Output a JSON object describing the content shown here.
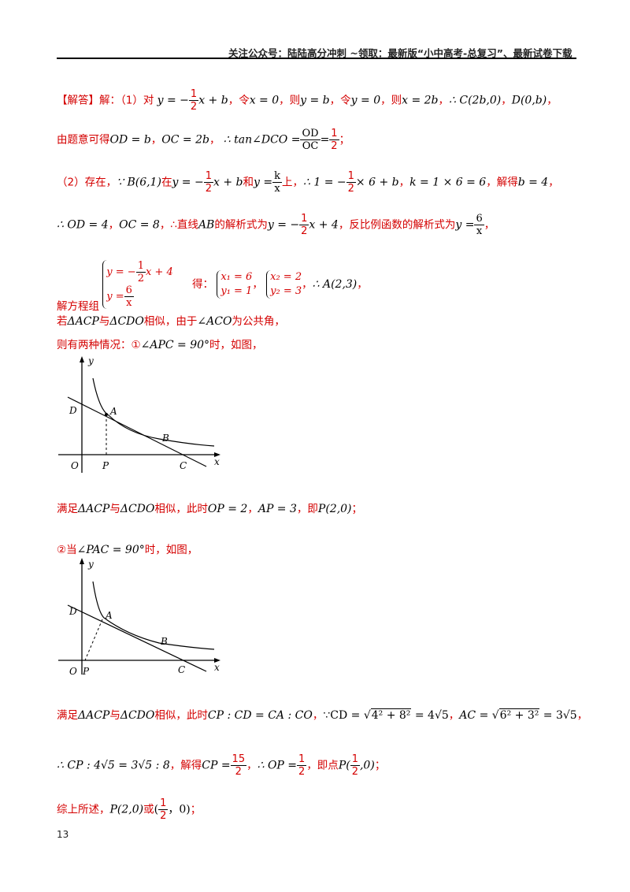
{
  "header": {
    "text": "关注公众号：陆陆高分冲刺 ~领取：最新版“小中高考-总复习”、最新试卷下载"
  },
  "page_number": "13",
  "l1": {
    "tag": "【解答】",
    "t1": "解：（1）对",
    "eq1": "y = −",
    "eq1n": "1",
    "eq1d": "2",
    "eq1r": "x + b",
    "t2": "，令",
    "e2": "x = 0",
    "t3": "，则",
    "e3": "y = b",
    "t4": "，令",
    "e4": "y = 0",
    "t5": "，则",
    "e5": "x = 2b",
    "t6": "，",
    "e6": "∴ C(2b,0)",
    "t7": "，",
    "e7": "D(0,b)",
    "t8": "，"
  },
  "l2": {
    "t1": "由题意可得",
    "e1": "OD = b",
    "t2": "，",
    "e2": "OC = 2b",
    "t3": "，",
    "e3": "∴ tan∠DCO =",
    "f1n": "OD",
    "f1d": "OC",
    "eq": "=",
    "f2n": "1",
    "f2d": "2",
    "t4": "；"
  },
  "l3": {
    "t1": "（2）存在，",
    "e1": "∵ B(6,1)",
    "t2": "在",
    "e2": "y = −",
    "e2n": "1",
    "e2d": "2",
    "e2r": "x + b",
    "t3": "和",
    "e3": "y =",
    "e3n": "k",
    "e3d": "x",
    "t4": "上，",
    "e4": "∴ 1 = −",
    "e4n": "1",
    "e4d": "2",
    "e4r": "× 6 + b",
    "t5": "，",
    "e5": "k = 1 × 6 = 6",
    "t6": "，解得",
    "e6": "b = 4",
    "t7": "，"
  },
  "l4": {
    "e1": "∴ OD = 4",
    "t1": "，",
    "e2": "OC = 8",
    "t2": "，∴直线",
    "e3": "AB",
    "t3": "的解析式为",
    "e4": "y = −",
    "e4n": "1",
    "e4d": "2",
    "e4r": "x + 4",
    "t4": "，反比例函数的解析式为",
    "e5": "y =",
    "e5n": "6",
    "e5d": "x",
    "t5": "，"
  },
  "l5": {
    "t1": "解方程组",
    "s1a": "y = −",
    "s1n": "1",
    "s1d": "2",
    "s1r": "x + 4",
    "s1b": "y =",
    "s1bn": "6",
    "s1bd": "x",
    "t2": "得：",
    "s2a": "x₁ = 6",
    "s2b": "y₁ = 1",
    "t3": "，",
    "s3a": "x₂ = 2",
    "s3b": "y₂ = 3",
    "t4": "，",
    "e1": "∴ A(2,3)",
    "t5": "，"
  },
  "l6": {
    "t1": "若",
    "e1": "ΔACP",
    "t2": "与",
    "e2": "ΔCDO",
    "t3": "相似，由于",
    "e3": "∠ACO",
    "t4": "为公共角，"
  },
  "l7": {
    "t1": "则有两种情况：①",
    "e1": "∠APC = 90°",
    "t2": "时，如图，"
  },
  "l8": {
    "t1": "满足",
    "e1": "ΔACP",
    "t2": "与",
    "e2": "ΔCDO",
    "t3": "相似，此时",
    "e3": "OP = 2",
    "t4": "，",
    "e4": "AP = 3",
    "t5": "，即",
    "e5": "P(2,0)",
    "t6": "；"
  },
  "l9": {
    "t1": "②当",
    "e1": "∠PAC = 90°",
    "t2": "时，如图，"
  },
  "l10": {
    "t1": "满足",
    "e1": "ΔACP",
    "t2": "与",
    "e2": "ΔCDO",
    "t3": "相似，此时",
    "e3": "CP : CD = CA : CO",
    "t4": "，",
    "e4": "∵CD = √",
    "e4r": "4² + 8²",
    "e4e": " = 4√5",
    "t5": "，",
    "e5": "AC = √",
    "e5r": "6² + 3²",
    "e5e": " = 3√5",
    "t6": "，"
  },
  "l11": {
    "e1": "∴ CP : 4√5 = 3√5 : 8",
    "t1": "，解得",
    "e2": "CP =",
    "e2n": "15",
    "e2d": "2",
    "t2": "，",
    "e3": "∴ OP =",
    "e3n": "1",
    "e3d": "2",
    "t3": "，即点",
    "e4": "P(",
    "e4n": "1",
    "e4d": "2",
    "e4r": ",0)",
    "t4": "；"
  },
  "l12": {
    "t1": "综上所述，",
    "e1": "P(2,0)",
    "t2": "或",
    "e2": "(",
    "e2n": "1",
    "e2d": "2",
    "e2r": "，0)",
    "t3": "；"
  },
  "figure1": {
    "y_label": "y",
    "x_label": "x",
    "O": "O",
    "D": "D",
    "A": "A",
    "B": "B",
    "P": "P",
    "C": "C"
  },
  "figure2": {
    "y_label": "y",
    "x_label": "x",
    "O": "O",
    "D": "D",
    "A": "A",
    "B": "B",
    "P": "P",
    "C": "C"
  }
}
